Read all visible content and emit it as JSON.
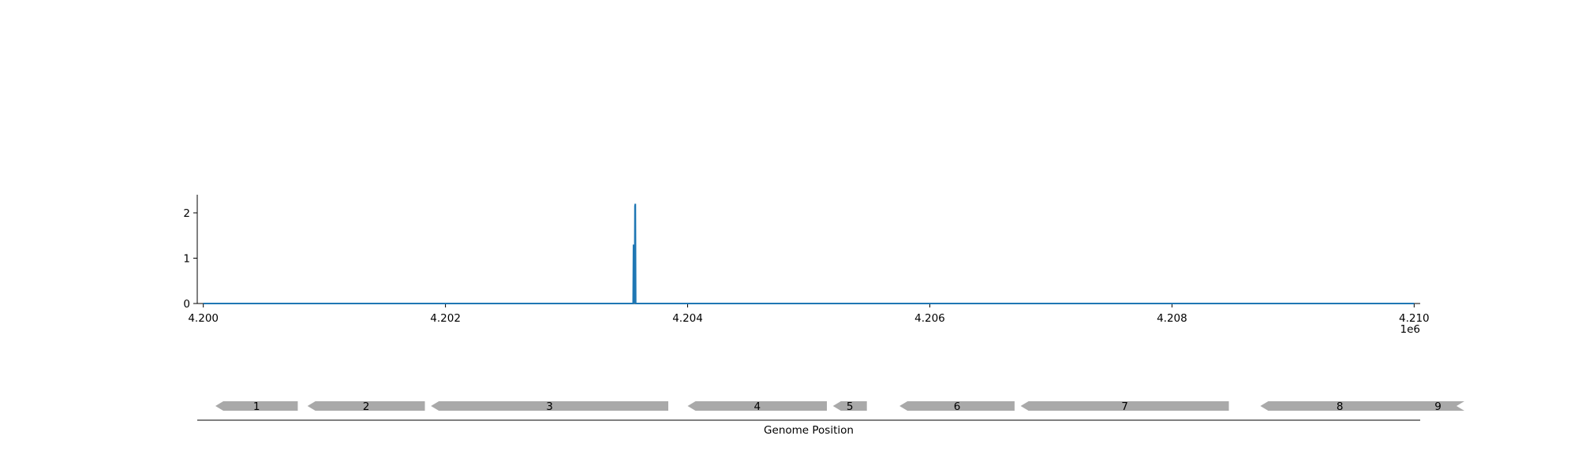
{
  "chart_data": [
    {
      "type": "line",
      "title": "",
      "xlabel": "",
      "ylabel": "",
      "x_offset_label": "1e6",
      "xlim": [
        4.19995,
        4.21005
      ],
      "ylim": [
        0,
        2.4
      ],
      "x_ticks": [
        4.2,
        4.202,
        4.204,
        4.206,
        4.208,
        4.21
      ],
      "x_tick_labels": [
        "4.200",
        "4.202",
        "4.204",
        "4.206",
        "4.208",
        "4.210"
      ],
      "y_ticks": [
        0,
        1,
        2
      ],
      "y_tick_labels": [
        "0",
        "1",
        "2"
      ],
      "grid": false,
      "series": [
        {
          "color": "#1f77b4",
          "x": [
            4.2,
            4.20355,
            4.203553,
            4.203556,
            4.203559,
            4.203562,
            4.203565,
            4.203568,
            4.203571,
            4.203574,
            4.203577,
            4.20358,
            4.203583,
            4.2036,
            4.21
          ],
          "y": [
            0,
            0,
            1.3,
            0,
            0.9,
            0,
            2.15,
            2.2,
            0,
            0,
            0,
            0,
            0,
            0,
            0
          ]
        }
      ]
    },
    {
      "type": "gene-track",
      "xlabel": "Genome Position",
      "genes": [
        {
          "label": "1",
          "start": 4.2001,
          "end": 4.20078,
          "strand": "-"
        },
        {
          "label": "2",
          "start": 4.20086,
          "end": 4.20183,
          "strand": "-"
        },
        {
          "label": "3",
          "start": 4.20188,
          "end": 4.20384,
          "strand": "-"
        },
        {
          "label": "4",
          "start": 4.204,
          "end": 4.20515,
          "strand": "-"
        },
        {
          "label": "5",
          "start": 4.2052,
          "end": 4.20548,
          "strand": "-"
        },
        {
          "label": "6",
          "start": 4.20575,
          "end": 4.2067,
          "strand": "-"
        },
        {
          "label": "7",
          "start": 4.20675,
          "end": 4.20847,
          "strand": "-"
        },
        {
          "label": "8",
          "start": 4.20873,
          "end": 4.21012,
          "strand": "-"
        },
        {
          "label": "9",
          "start": 4.21035,
          "end": 4.21117,
          "strand": "-"
        }
      ],
      "gene_color": "#a9a9a9"
    }
  ]
}
